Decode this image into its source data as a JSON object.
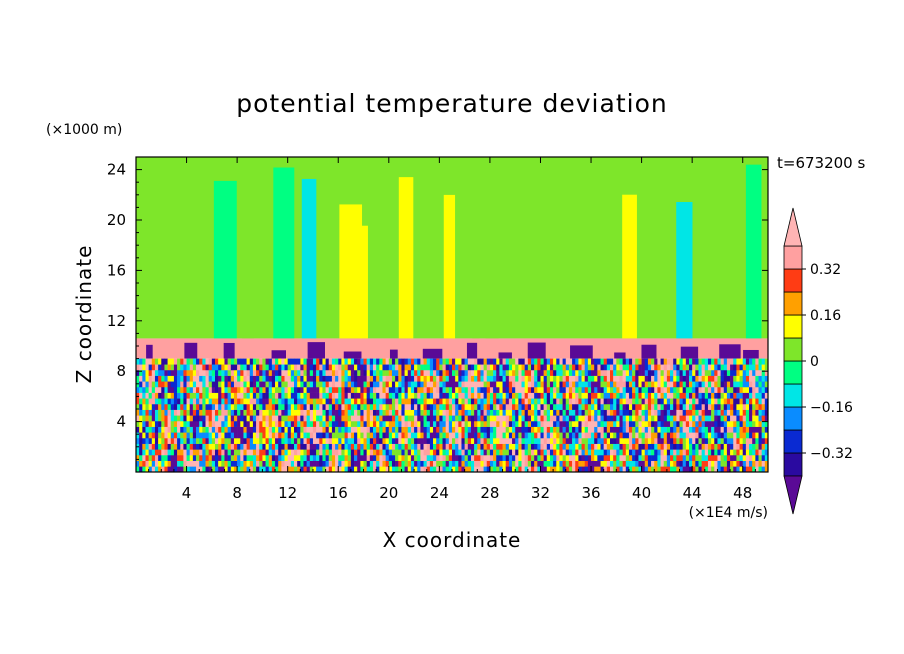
{
  "chart_data": {
    "type": "heatmap",
    "title": "potential temperature deviation",
    "xlabel": "X coordinate",
    "ylabel": "Z coordinate",
    "x_unit": "(×1E4 m/s)",
    "y_unit": "(×1000 m)",
    "time_label": "t=673200 s",
    "xlim": [
      0,
      50
    ],
    "ylim": [
      0,
      25
    ],
    "x_ticks": [
      4,
      8,
      12,
      16,
      20,
      24,
      28,
      32,
      36,
      40,
      44,
      48
    ],
    "y_ticks": [
      4,
      8,
      12,
      16,
      20,
      24
    ],
    "colorbar": {
      "levels": [
        -0.4,
        -0.32,
        -0.24,
        -0.16,
        -0.08,
        0,
        0.08,
        0.16,
        0.24,
        0.32,
        0.4
      ],
      "colors": [
        "#5a0a96",
        "#2a0aa0",
        "#0a2ad2",
        "#0a8cff",
        "#00e6e6",
        "#00ff82",
        "#7ee62a",
        "#ffff00",
        "#ffa000",
        "#ff3c14",
        "#ffa0a0",
        "#ffb4b4"
      ],
      "tick_labels": [
        "0.32",
        "0.16",
        "0",
        "−0.16",
        "−0.32"
      ],
      "tick_values": [
        0.32,
        0.16,
        0,
        -0.16,
        -0.32
      ]
    },
    "layers": {
      "upper_band": [
        10.6,
        25
      ],
      "tropopause_band": [
        9.0,
        10.6
      ],
      "lower_band": [
        0,
        9.0
      ]
    }
  }
}
